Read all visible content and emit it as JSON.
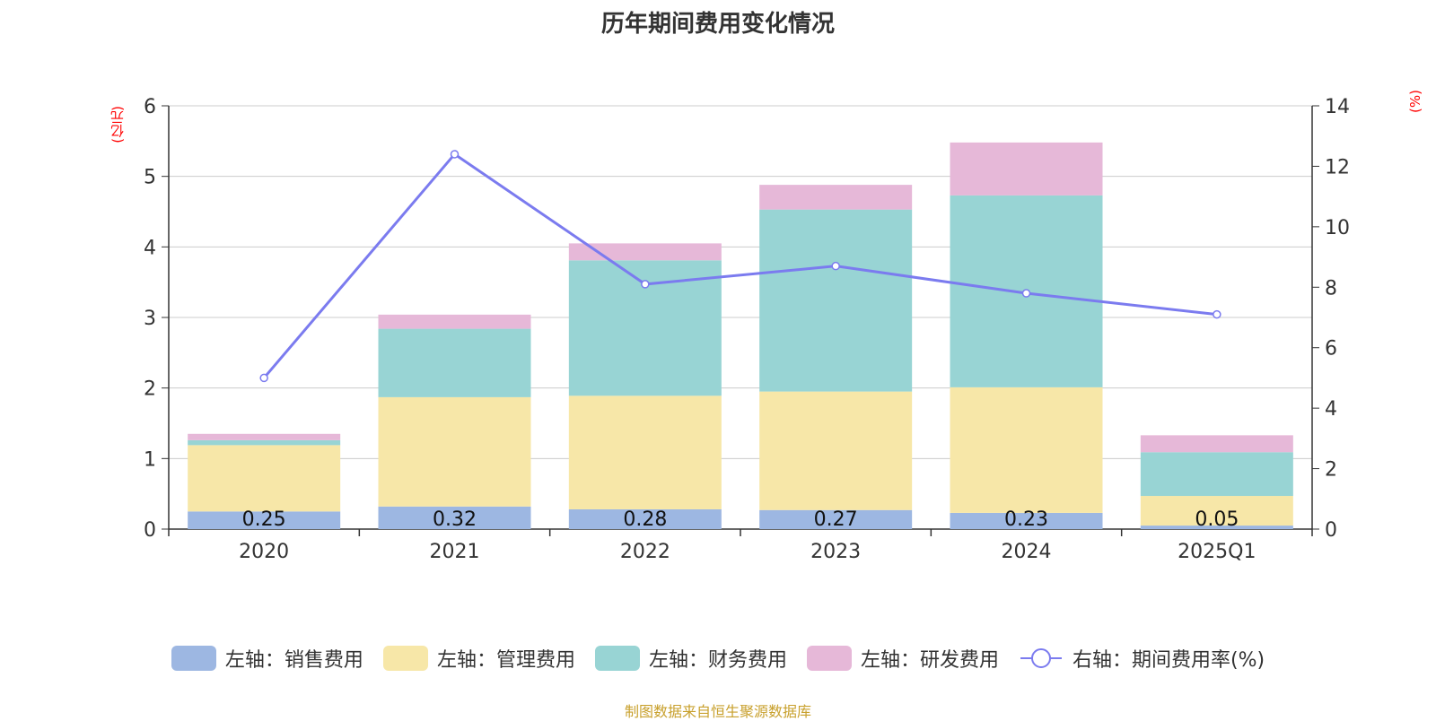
{
  "chart_data": {
    "type": "bar",
    "stacked": true,
    "title": "历年期间费用变化情况",
    "left_unit": "(亿元)",
    "right_unit": "(%)",
    "categories": [
      "2020",
      "2021",
      "2022",
      "2023",
      "2024",
      "2025Q1"
    ],
    "series": [
      {
        "name": "左轴：销售费用",
        "axis": "left",
        "type": "bar",
        "color": "#9db7e2",
        "values": [
          0.25,
          0.32,
          0.28,
          0.27,
          0.23,
          0.05
        ],
        "labels": [
          "0.25",
          "0.32",
          "0.28",
          "0.27",
          "0.23",
          "0.05"
        ]
      },
      {
        "name": "左轴：管理费用",
        "axis": "left",
        "type": "bar",
        "color": "#f7e7a8",
        "values": [
          0.94,
          1.55,
          1.61,
          1.68,
          1.78,
          0.42
        ]
      },
      {
        "name": "左轴：财务费用",
        "axis": "left",
        "type": "bar",
        "color": "#98d4d4",
        "values": [
          0.07,
          0.97,
          1.92,
          2.58,
          2.72,
          0.62
        ]
      },
      {
        "name": "左轴：研发费用",
        "axis": "left",
        "type": "bar",
        "color": "#e6b8d8",
        "values": [
          0.09,
          0.2,
          0.24,
          0.35,
          0.75,
          0.24
        ]
      },
      {
        "name": "右轴：期间费用率(%)",
        "axis": "right",
        "type": "line",
        "color": "#7b7bef",
        "values": [
          5.0,
          12.4,
          8.1,
          8.7,
          7.8,
          7.1
        ]
      }
    ],
    "left_axis": {
      "min": 0,
      "max": 6,
      "ticks": [
        0,
        1,
        2,
        3,
        4,
        5,
        6
      ]
    },
    "right_axis": {
      "min": 0,
      "max": 14,
      "ticks": [
        0,
        2,
        4,
        6,
        8,
        10,
        12,
        14
      ]
    },
    "grid": true,
    "legend_position": "bottom"
  },
  "source": "制图数据来自恒生聚源数据库"
}
